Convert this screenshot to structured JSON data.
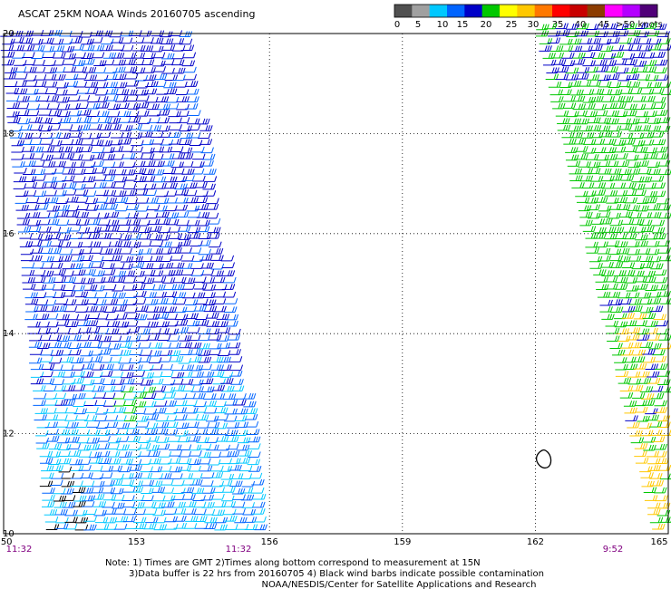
{
  "title": "ASCAT 25KM NOAA Winds 20160705 ascending",
  "legend": {
    "colors": [
      "#505050",
      "#a0a0a0",
      "#00c8ff",
      "#0064ff",
      "#0000c8",
      "#00c800",
      "#ffff00",
      "#ffc800",
      "#ff7800",
      "#ff0000",
      "#c80000",
      "#8c3c00",
      "#ff00ff",
      "#b400ff",
      "#500078"
    ],
    "labels": [
      "0",
      "5",
      "10",
      "15",
      "20",
      "25",
      "30",
      "35",
      "40",
      "45",
      ">50 knots"
    ]
  },
  "axes": {
    "lat_labels": [
      "20",
      "18",
      "16",
      "14",
      "12",
      "10"
    ],
    "lon_labels": [
      "150",
      "153",
      "156",
      "159",
      "162",
      "165"
    ]
  },
  "pass_times": [
    {
      "time": "11:32",
      "name": "pass-time-left-1"
    },
    {
      "time": "11:32",
      "name": "pass-time-left-2"
    },
    {
      "time": "9:52",
      "name": "pass-time-right"
    }
  ],
  "notes": [
    "Note: 1) Times are GMT 2)Times along bottom correspond to measurement at 15N",
    "3)Data buffer is 22 hrs from 20160705 4) Black wind barbs indicate possible contamination",
    "NOAA/NESDIS/Center for Satellite Applications and Research"
  ],
  "colors": {
    "grid": "#000000",
    "time_label": "#800080",
    "barb_dark_blue": "#0000c8",
    "barb_blue": "#0064ff",
    "barb_cyan": "#00c8ff",
    "barb_green": "#00c800",
    "barb_yellow": "#ffc800",
    "contamination": "#000000"
  }
}
